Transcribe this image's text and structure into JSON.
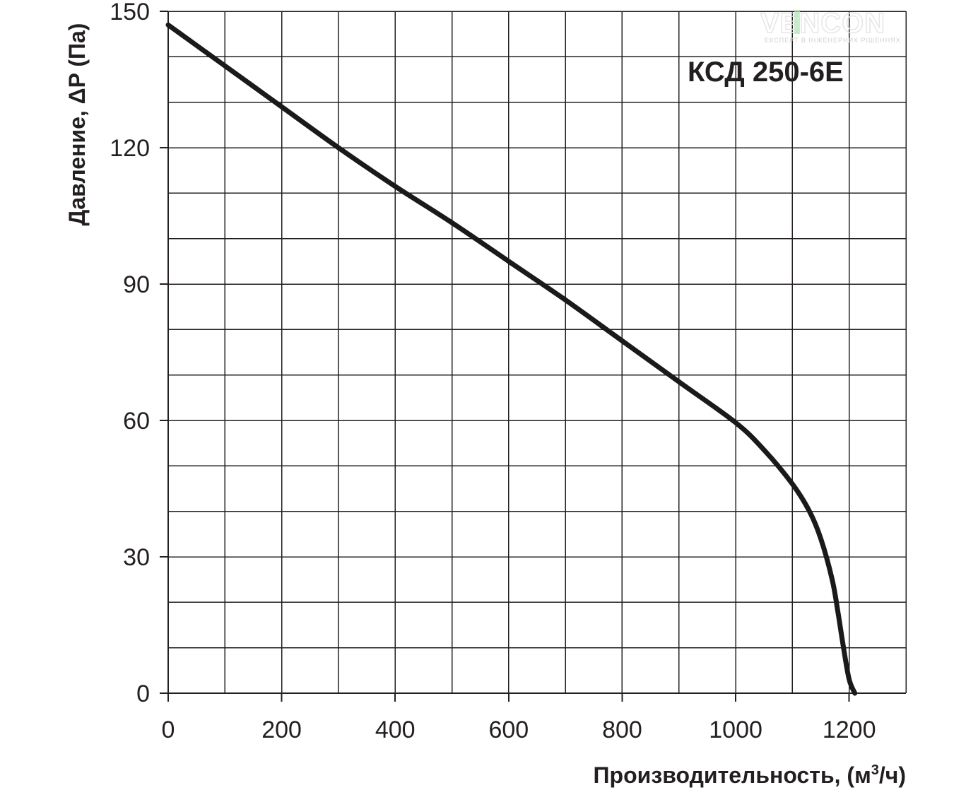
{
  "chart_data": {
    "type": "line",
    "title": "КСД 250-6Е",
    "xlabel": "Производительность, (м",
    "xlabel_sup": "3",
    "xlabel_end": "/ч)",
    "ylabel": "Давление, ΔP (Па)",
    "xlim": [
      0,
      1300
    ],
    "ylim": [
      0,
      150
    ],
    "x_ticks": [
      0,
      200,
      400,
      600,
      800,
      1000,
      1200
    ],
    "y_ticks": [
      0,
      30,
      60,
      90,
      120,
      150
    ],
    "x_grid_step": 100,
    "y_grid_step": 10,
    "grid": true,
    "series": [
      {
        "x": [
          0,
          100,
          200,
          300,
          400,
          500,
          600,
          700,
          800,
          900,
          1000,
          1050,
          1100,
          1130,
          1150,
          1170,
          1180,
          1190,
          1200,
          1210
        ],
        "y": [
          147,
          138,
          129,
          120,
          111.5,
          103.5,
          95,
          86.5,
          77.5,
          68.5,
          59.5,
          53.5,
          46,
          40,
          34,
          25,
          18,
          10,
          3,
          0
        ]
      }
    ],
    "line_color": "#1a1a1a"
  },
  "logo": {
    "name": "VENCON",
    "tagline": "ЕКСПЕРТ В ІНЖЕНЕРНИХ РІШЕННЯХ",
    "accent_color": "#b7e4b9"
  }
}
